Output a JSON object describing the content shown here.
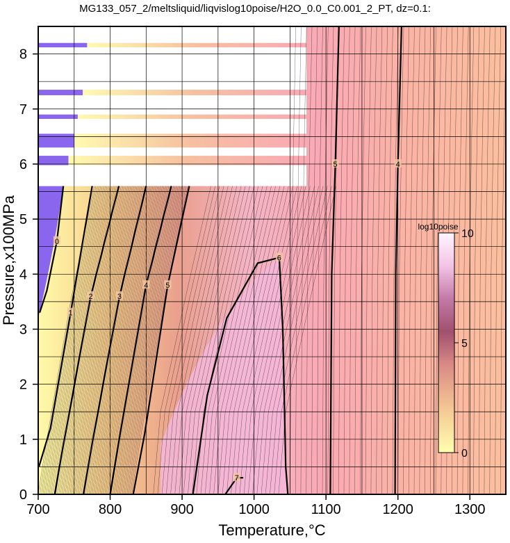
{
  "chart_data": {
    "type": "heatmap",
    "title": "MG133_057_2/meltsliquid/liqvislog10poise/H2O_0.0_C0.001_2_PT, dz=0.1:",
    "xlabel": "Temperature,°C",
    "ylabel": "Pressure,x100MPa",
    "xlim": [
      700,
      1350
    ],
    "ylim": [
      0,
      8.5
    ],
    "x_ticks": [
      "700",
      "800",
      "900",
      "1000",
      "1100",
      "1200",
      "1300"
    ],
    "y_ticks": [
      "0",
      "1",
      "2",
      "3",
      "4",
      "5",
      "6",
      "7",
      "8"
    ],
    "grid": true,
    "colorbar": {
      "label": "log10poise",
      "range": [
        0,
        10
      ],
      "ticks": [
        "0",
        "5",
        "10"
      ],
      "placement": "right",
      "colors": [
        "#ffffb0",
        "#f6c98c",
        "#e79a9a",
        "#c0708a",
        "#8a3e6a",
        "#f4c8e8",
        "#fff0ff"
      ]
    },
    "contours": [
      {
        "level": 0,
        "label": "0",
        "points": [
          [
            702,
            3.3
          ],
          [
            712,
            3.7
          ],
          [
            726,
            4.6
          ],
          [
            735,
            5.6
          ]
        ]
      },
      {
        "level": 1,
        "label": "1",
        "points": [
          [
            701,
            0.5
          ],
          [
            717,
            1.2
          ],
          [
            745,
            3.3
          ],
          [
            775,
            5.6
          ]
        ]
      },
      {
        "level": 2,
        "label": "2",
        "points": [
          [
            723,
            0.0
          ],
          [
            735,
            0.9
          ],
          [
            773,
            3.6
          ],
          [
            812,
            5.6
          ]
        ]
      },
      {
        "level": 3,
        "label": "3",
        "points": [
          [
            763,
            0.0
          ],
          [
            776,
            1.0
          ],
          [
            813,
            3.6
          ],
          [
            850,
            5.6
          ]
        ]
      },
      {
        "level": 4,
        "label": "4",
        "points": [
          [
            800,
            0.0
          ],
          [
            814,
            1.1
          ],
          [
            850,
            3.8
          ],
          [
            885,
            5.6
          ]
        ]
      },
      {
        "level": 5,
        "label": "5",
        "points": [
          [
            832,
            0.0
          ],
          [
            848,
            1.1
          ],
          [
            880,
            3.8
          ],
          [
            910,
            5.6
          ]
        ]
      },
      {
        "level": 6,
        "label": "6",
        "points": [
          [
            915,
            0.0
          ],
          [
            935,
            1.8
          ],
          [
            962,
            3.2
          ],
          [
            1005,
            4.2
          ],
          [
            1035,
            4.3
          ],
          [
            1040,
            3.0
          ],
          [
            1044,
            0.5
          ],
          [
            1047,
            0.0
          ]
        ]
      },
      {
        "level": 7,
        "label": "7",
        "points": [
          [
            960,
            0.0
          ],
          [
            976,
            0.3
          ],
          [
            985,
            0.3
          ]
        ]
      },
      {
        "level": 5,
        "label": "5",
        "points": [
          [
            1106,
            0.0
          ],
          [
            1108,
            4.0
          ],
          [
            1113,
            6.0
          ],
          [
            1118,
            8.5
          ]
        ]
      },
      {
        "level": 4,
        "label": "4",
        "points": [
          [
            1196,
            0.0
          ],
          [
            1197,
            4.0
          ],
          [
            1200,
            6.0
          ],
          [
            1205,
            8.5
          ]
        ]
      }
    ],
    "annotations": [
      "0",
      "1",
      "2",
      "3",
      "4",
      "5",
      "6",
      "7"
    ],
    "data_gaps": "no data for T < 1073 °C above 5.6 (stippled bands near 6.0–6.5)"
  }
}
